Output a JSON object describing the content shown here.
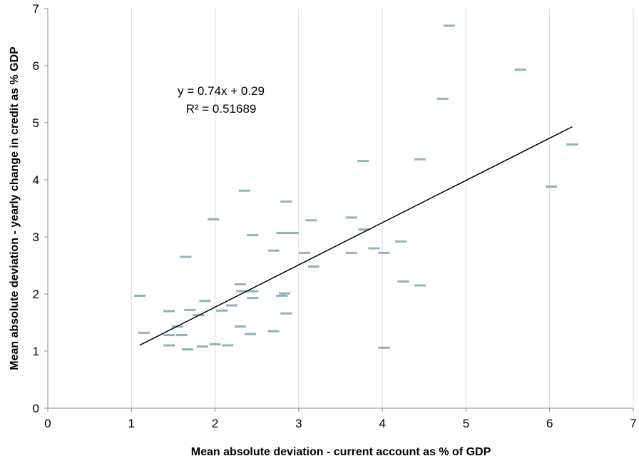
{
  "chart_data": {
    "type": "scatter",
    "xlabel": "Mean absolute deviation - current account as % of GDP",
    "ylabel": "Mean absolute deviation - yearly change in credit as % GDP",
    "xlim": [
      0,
      7
    ],
    "ylim": [
      0,
      7
    ],
    "x_ticks": [
      "0",
      "1",
      "2",
      "3",
      "4",
      "5",
      "6",
      "7"
    ],
    "y_ticks": [
      "0",
      "1",
      "2",
      "3",
      "4",
      "5",
      "6",
      "7"
    ],
    "grid": "vertical",
    "legend": "none",
    "annotations": {
      "equation": "y = 0.74x + 0.29",
      "r_squared": "R² = 0.51689"
    },
    "trendline": {
      "slope": 0.74,
      "intercept": 0.29,
      "x_range": [
        1.1,
        6.27
      ]
    },
    "marker_color": "#8fb3b8",
    "points": [
      {
        "x": 1.1,
        "y": 1.97
      },
      {
        "x": 1.15,
        "y": 1.32
      },
      {
        "x": 1.45,
        "y": 1.7
      },
      {
        "x": 1.45,
        "y": 1.28
      },
      {
        "x": 1.45,
        "y": 1.1
      },
      {
        "x": 1.55,
        "y": 1.43
      },
      {
        "x": 1.6,
        "y": 1.28
      },
      {
        "x": 1.65,
        "y": 2.65
      },
      {
        "x": 1.67,
        "y": 1.03
      },
      {
        "x": 1.7,
        "y": 1.72
      },
      {
        "x": 1.8,
        "y": 1.63
      },
      {
        "x": 1.85,
        "y": 1.08
      },
      {
        "x": 1.88,
        "y": 1.88
      },
      {
        "x": 1.98,
        "y": 3.31
      },
      {
        "x": 2.0,
        "y": 1.12
      },
      {
        "x": 2.08,
        "y": 1.71
      },
      {
        "x": 2.15,
        "y": 1.1
      },
      {
        "x": 2.2,
        "y": 1.8
      },
      {
        "x": 2.3,
        "y": 2.17
      },
      {
        "x": 2.3,
        "y": 1.43
      },
      {
        "x": 2.32,
        "y": 2.05
      },
      {
        "x": 2.35,
        "y": 3.81
      },
      {
        "x": 2.42,
        "y": 1.3
      },
      {
        "x": 2.45,
        "y": 3.03
      },
      {
        "x": 2.45,
        "y": 2.05
      },
      {
        "x": 2.45,
        "y": 1.93
      },
      {
        "x": 2.7,
        "y": 2.76
      },
      {
        "x": 2.7,
        "y": 1.35
      },
      {
        "x": 2.8,
        "y": 3.07
      },
      {
        "x": 2.8,
        "y": 1.97
      },
      {
        "x": 2.83,
        "y": 2.01
      },
      {
        "x": 2.85,
        "y": 3.62
      },
      {
        "x": 2.85,
        "y": 1.66
      },
      {
        "x": 2.93,
        "y": 3.07
      },
      {
        "x": 3.07,
        "y": 2.72
      },
      {
        "x": 3.15,
        "y": 3.29
      },
      {
        "x": 3.18,
        "y": 2.48
      },
      {
        "x": 3.63,
        "y": 3.34
      },
      {
        "x": 3.63,
        "y": 2.72
      },
      {
        "x": 3.77,
        "y": 4.33
      },
      {
        "x": 3.78,
        "y": 3.13
      },
      {
        "x": 3.9,
        "y": 2.8
      },
      {
        "x": 4.02,
        "y": 2.72
      },
      {
        "x": 4.02,
        "y": 1.06
      },
      {
        "x": 4.22,
        "y": 2.92
      },
      {
        "x": 4.25,
        "y": 2.22
      },
      {
        "x": 4.45,
        "y": 4.36
      },
      {
        "x": 4.45,
        "y": 2.15
      },
      {
        "x": 4.72,
        "y": 5.42
      },
      {
        "x": 4.8,
        "y": 6.7
      },
      {
        "x": 5.65,
        "y": 5.93
      },
      {
        "x": 6.02,
        "y": 3.88
      },
      {
        "x": 6.27,
        "y": 4.62
      }
    ]
  }
}
